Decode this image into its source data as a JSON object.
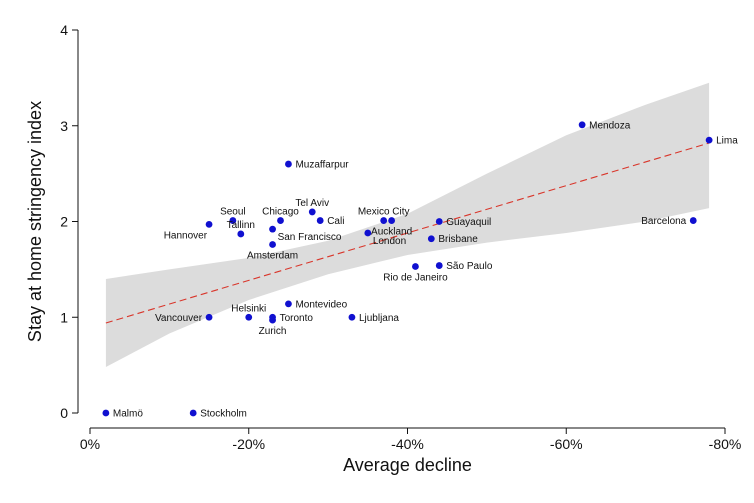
{
  "chart_data": {
    "type": "scatter",
    "xlabel": "Average decline",
    "ylabel": "Stay at home stringency index",
    "xlim": [
      0,
      -0.8
    ],
    "ylim": [
      0,
      4
    ],
    "x_ticks": [
      0,
      -0.2,
      -0.4,
      -0.6,
      -0.8
    ],
    "x_tick_labels": [
      "0%",
      "-20%",
      "-40%",
      "-60%",
      "-80%"
    ],
    "y_ticks": [
      0,
      1,
      2,
      3,
      4
    ],
    "y_tick_labels": [
      "0",
      "1",
      "2",
      "3",
      "4"
    ],
    "grid": false,
    "point_color": "#1010d0",
    "fit_line": {
      "style": "dashed",
      "color": "#d9352a",
      "x": [
        -0.02,
        -0.78
      ],
      "y": [
        0.94,
        2.82
      ]
    },
    "confidence_band": {
      "color": "#dcdcdc",
      "x": [
        -0.02,
        -0.1,
        -0.2,
        -0.3,
        -0.4,
        -0.5,
        -0.6,
        -0.7,
        -0.78
      ],
      "lower": [
        0.48,
        0.83,
        1.18,
        1.45,
        1.65,
        1.78,
        1.88,
        2.0,
        2.14
      ],
      "upper": [
        1.4,
        1.5,
        1.62,
        1.8,
        2.08,
        2.5,
        2.9,
        3.22,
        3.45
      ]
    },
    "points": [
      {
        "city": "Malmö",
        "x": -0.02,
        "y": 0.0,
        "label_side": "right"
      },
      {
        "city": "Stockholm",
        "x": -0.13,
        "y": 0.0,
        "label_side": "right"
      },
      {
        "city": "Vancouver",
        "x": -0.15,
        "y": 1.0,
        "label_side": "left"
      },
      {
        "city": "Helsinki",
        "x": -0.2,
        "y": 1.0,
        "label_side": "above"
      },
      {
        "city": "Toronto",
        "x": -0.23,
        "y": 1.0,
        "label_side": "right"
      },
      {
        "city": "Zurich",
        "x": -0.23,
        "y": 0.97,
        "label_side": "below"
      },
      {
        "city": "Montevideo",
        "x": -0.25,
        "y": 1.14,
        "label_side": "right"
      },
      {
        "city": "Ljubljana",
        "x": -0.33,
        "y": 1.0,
        "label_side": "right"
      },
      {
        "city": "Seoul",
        "x": -0.18,
        "y": 2.01,
        "label_side": "above"
      },
      {
        "city": "Tallinn",
        "x": -0.19,
        "y": 1.87,
        "label_side": "above"
      },
      {
        "city": "Hannover",
        "x": -0.15,
        "y": 1.97,
        "label_side": "below-left"
      },
      {
        "city": "Chicago",
        "x": -0.24,
        "y": 2.01,
        "label_side": "above"
      },
      {
        "city": "San Francisco",
        "x": -0.23,
        "y": 1.92,
        "label_side": "below-right"
      },
      {
        "city": "Amsterdam",
        "x": -0.23,
        "y": 1.76,
        "label_side": "below"
      },
      {
        "city": "Tel Aviv",
        "x": -0.28,
        "y": 2.1,
        "label_side": "above"
      },
      {
        "city": "Cali",
        "x": -0.29,
        "y": 2.01,
        "label_side": "right"
      },
      {
        "city": "Muzaffarpur",
        "x": -0.25,
        "y": 2.6,
        "label_side": "right"
      },
      {
        "city": "Mexico City",
        "x": -0.37,
        "y": 2.01,
        "label_side": "above"
      },
      {
        "city": "Auckland",
        "x": -0.38,
        "y": 2.01,
        "label_side": "below"
      },
      {
        "city": "London",
        "x": -0.35,
        "y": 1.88,
        "label_side": "below-right"
      },
      {
        "city": "Guayaquil",
        "x": -0.44,
        "y": 2.0,
        "label_side": "right"
      },
      {
        "city": "Brisbane",
        "x": -0.43,
        "y": 1.82,
        "label_side": "right"
      },
      {
        "city": "Rio de Janeiro",
        "x": -0.41,
        "y": 1.53,
        "label_side": "below"
      },
      {
        "city": "São Paulo",
        "x": -0.44,
        "y": 1.54,
        "label_side": "right"
      },
      {
        "city": "Mendoza",
        "x": -0.62,
        "y": 3.01,
        "label_side": "right"
      },
      {
        "city": "Lima",
        "x": -0.78,
        "y": 2.85,
        "label_side": "right"
      },
      {
        "city": "Barcelona",
        "x": -0.76,
        "y": 2.01,
        "label_side": "left"
      }
    ]
  }
}
